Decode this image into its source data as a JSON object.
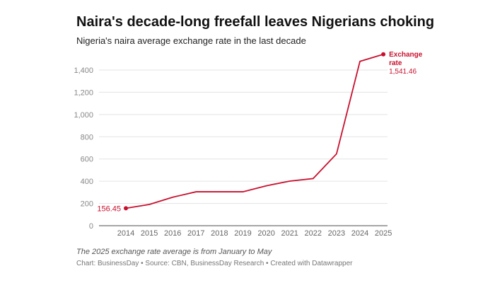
{
  "title": "Naira's decade-long freefall leaves Nigerians choking",
  "subtitle": "Nigeria's naira average exchange rate in the last decade",
  "note": "The 2025 exchange rate average is from January to May",
  "credit": "Chart: BusinessDay • Source: CBN, BusinessDay Research • Created with Datawrapper",
  "chart_data": {
    "type": "line",
    "x": [
      "2014",
      "2015",
      "2016",
      "2017",
      "2018",
      "2019",
      "2020",
      "2021",
      "2022",
      "2023",
      "2024",
      "2025"
    ],
    "series": [
      {
        "name": "Exchange rate",
        "values": [
          156.45,
          191,
          256,
          305,
          305,
          305,
          359,
          401,
          424,
          646,
          1478,
          1541.46
        ],
        "color": "#c8102e"
      }
    ],
    "ylim": [
      0,
      1400
    ],
    "yticks": [
      0,
      200,
      400,
      600,
      800,
      1000,
      1200,
      1400
    ],
    "ytick_labels": [
      "0",
      "200",
      "400",
      "600",
      "800",
      "1,000",
      "1,200",
      "1,400"
    ],
    "grid": true,
    "start_label": "156.45",
    "end_label_name": [
      "Exchange",
      "rate"
    ],
    "end_label_value": "1,541.46"
  }
}
